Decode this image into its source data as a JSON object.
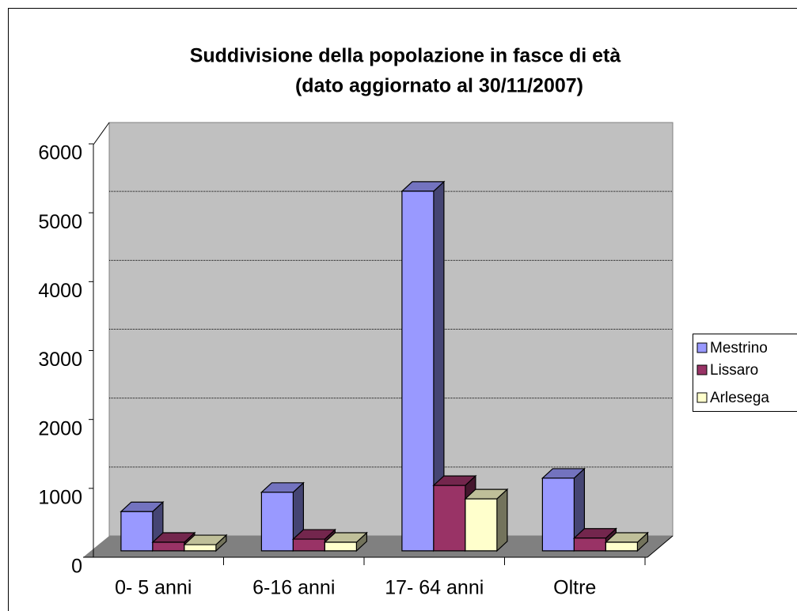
{
  "chart_data": {
    "type": "bar3d",
    "title": "Suddivisione della popolazione in fasce di età",
    "subtitle": "(dato aggiornato al 30/11/2007)",
    "categories": [
      "0- 5 anni",
      "6-16 anni",
      "17- 64 anni",
      "Oltre"
    ],
    "series": [
      {
        "name": "Mestrino",
        "color": "#9999ff",
        "values": [
          570,
          850,
          5220,
          1055
        ]
      },
      {
        "name": "Lissaro",
        "color": "#993366",
        "values": [
          125,
          170,
          950,
          185
        ]
      },
      {
        "name": "Arlesega",
        "color": "#ffffcc",
        "values": [
          90,
          125,
          755,
          125
        ]
      }
    ],
    "ylim": [
      0,
      6000
    ],
    "yticks": [
      0,
      1000,
      2000,
      3000,
      4000,
      5000,
      6000
    ],
    "grid": true,
    "legend": "right"
  }
}
